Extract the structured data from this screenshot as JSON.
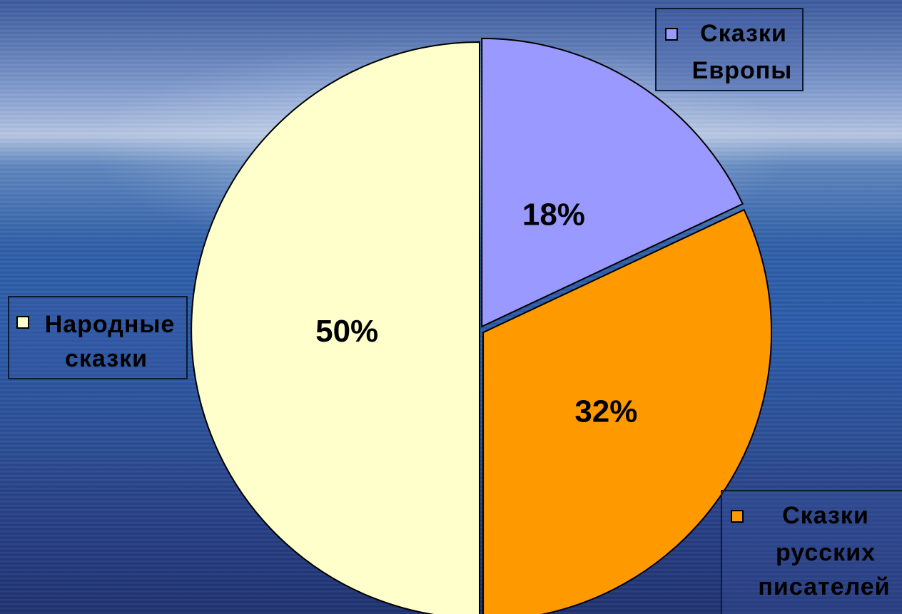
{
  "chart_data": {
    "type": "pie",
    "categories": [
      "Сказки Европы",
      "Сказки русских писателей",
      "Народные сказки"
    ],
    "values": [
      18,
      32,
      50
    ],
    "labels": [
      "18%",
      "32%",
      "50%"
    ],
    "colors": [
      "#9999ff",
      "#ff9900",
      "#ffffcc"
    ],
    "legend": {
      "europe": {
        "line1": "Сказки",
        "line2": "Европы",
        "color": "#9999ff"
      },
      "writers": {
        "line1": "Сказки",
        "line2": "русских",
        "line3": "писателей",
        "color": "#ff9900"
      },
      "folk": {
        "line1": "Народные",
        "line2": "сказки",
        "color": "#ffffcc"
      }
    }
  }
}
